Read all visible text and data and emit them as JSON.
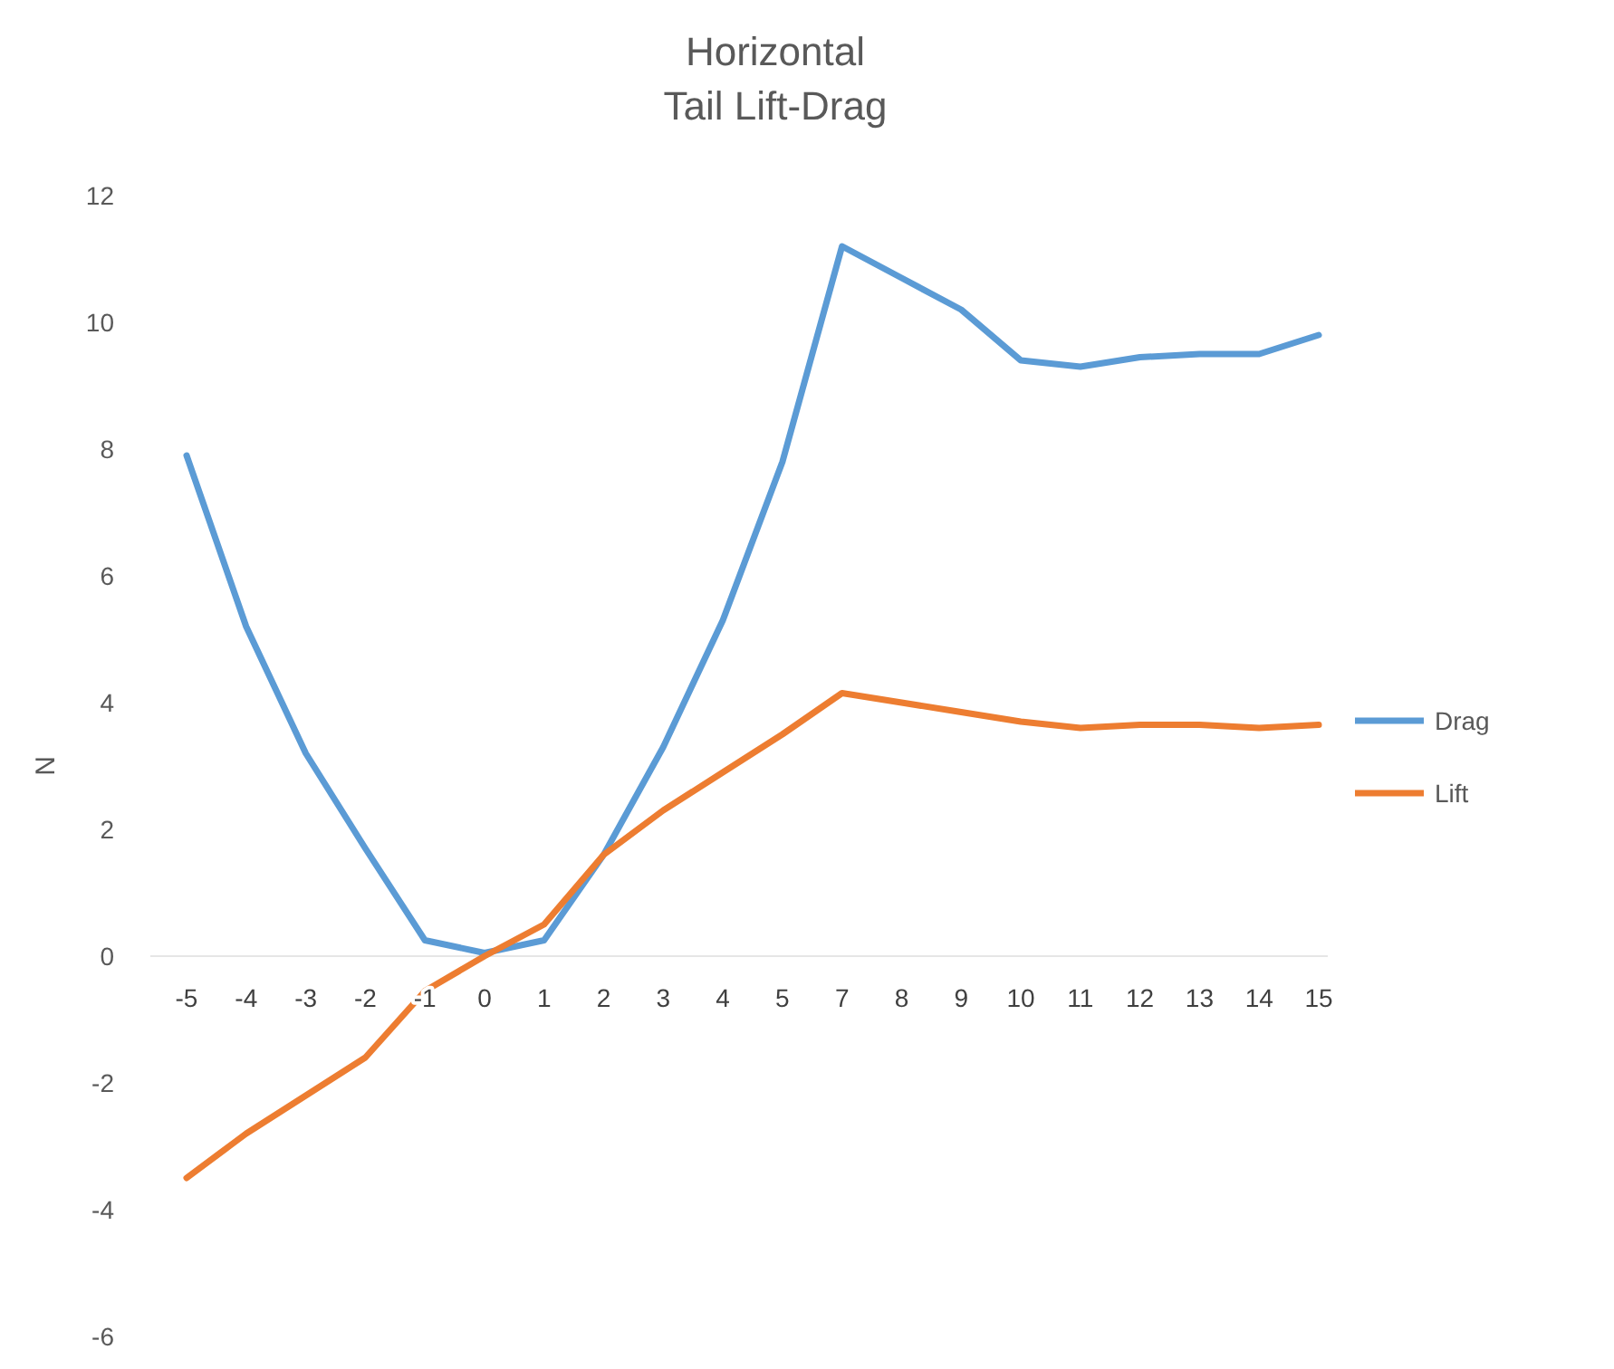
{
  "chart_data": {
    "type": "line",
    "title": "Horizontal\nTail Lift-Drag",
    "ylabel": "N",
    "categories": [
      "-5",
      "-4",
      "-3",
      "-2",
      "-1",
      "0",
      "1",
      "2",
      "3",
      "4",
      "5",
      "7",
      "8",
      "9",
      "10",
      "11",
      "12",
      "13",
      "14",
      "15"
    ],
    "series": [
      {
        "name": "Drag",
        "color": "#5b9bd5",
        "values": [
          7.9,
          5.2,
          3.2,
          1.7,
          0.25,
          0.05,
          0.25,
          1.6,
          3.3,
          5.3,
          7.8,
          11.2,
          10.7,
          10.2,
          9.4,
          9.3,
          9.45,
          9.5,
          9.5,
          9.8
        ]
      },
      {
        "name": "Lift",
        "color": "#ed7d31",
        "values": [
          -3.5,
          -2.8,
          -2.2,
          -1.6,
          -0.55,
          0,
          0.5,
          1.6,
          2.3,
          2.9,
          3.5,
          4.15,
          4.0,
          3.85,
          3.7,
          3.6,
          3.65,
          3.65,
          3.6,
          3.65
        ]
      }
    ],
    "ylim": [
      -6,
      12
    ],
    "yticks": [
      -6,
      -4,
      -2,
      0,
      2,
      4,
      6,
      8,
      10,
      12
    ],
    "grid": false,
    "legend": "right",
    "line_style": "solid",
    "marker": "none"
  }
}
